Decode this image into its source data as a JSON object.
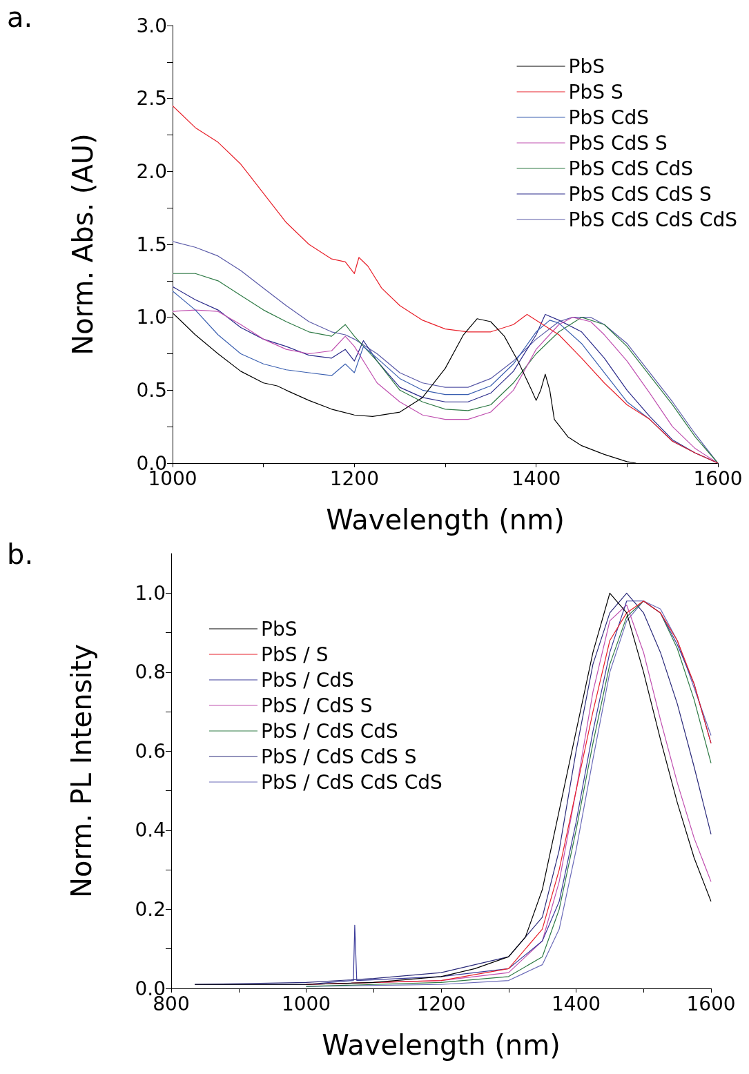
{
  "chart_data": [
    {
      "type": "line",
      "annotations": [
        "a."
      ],
      "xlabel": "Wavelength (nm)",
      "ylabel": "Norm. Abs. (AU)",
      "xlim": [
        1000,
        1600
      ],
      "xticks": [
        1000,
        {
          "value": 1100,
          "label": null
        },
        1200,
        {
          "value": 1300,
          "label": null
        },
        1400,
        {
          "value": 1500,
          "label": null
        },
        1600
      ],
      "ylim": [
        0,
        3
      ],
      "yticks": [
        {
          "value": 0,
          "label": "0.0"
        },
        {
          "value": 0.25,
          "label": null
        },
        {
          "value": 0.5,
          "label": "0.5"
        },
        {
          "value": 0.75,
          "label": null
        },
        {
          "value": 1,
          "label": "1.0"
        },
        {
          "value": 1.25,
          "label": null
        },
        {
          "value": 1.5,
          "label": "1.5"
        },
        {
          "value": 1.75,
          "label": null
        },
        {
          "value": 2,
          "label": "2.0"
        },
        {
          "value": 2.25,
          "label": null
        },
        {
          "value": 2.5,
          "label": "2.5"
        },
        {
          "value": 2.75,
          "label": null
        },
        {
          "value": 3,
          "label": "3.0"
        }
      ],
      "grid": false,
      "legend": "top right",
      "marker": "none",
      "line_style": "solid",
      "series": [
        {
          "name": "PbS",
          "color": "#000000",
          "x": [
            1000,
            1025,
            1050,
            1075,
            1100,
            1115,
            1125,
            1150,
            1175,
            1200,
            1220,
            1250,
            1275,
            1300,
            1320,
            1335,
            1350,
            1365,
            1380,
            1395,
            1400,
            1405,
            1410,
            1415,
            1420,
            1435,
            1450,
            1475,
            1500,
            1510
          ],
          "values": [
            1.03,
            0.88,
            0.75,
            0.63,
            0.55,
            0.53,
            0.5,
            0.43,
            0.37,
            0.33,
            0.32,
            0.35,
            0.45,
            0.65,
            0.88,
            0.99,
            0.97,
            0.87,
            0.7,
            0.5,
            0.43,
            0.5,
            0.61,
            0.5,
            0.3,
            0.18,
            0.12,
            0.06,
            0.01,
            0.0
          ]
        },
        {
          "name": "PbS S",
          "color": "#e8202a",
          "x": [
            1000,
            1025,
            1050,
            1075,
            1100,
            1125,
            1150,
            1175,
            1190,
            1200,
            1205,
            1215,
            1230,
            1250,
            1275,
            1300,
            1325,
            1350,
            1375,
            1390,
            1400,
            1425,
            1450,
            1475,
            1500,
            1525,
            1550,
            1575,
            1600
          ],
          "values": [
            2.45,
            2.3,
            2.2,
            2.05,
            1.85,
            1.65,
            1.5,
            1.4,
            1.38,
            1.3,
            1.41,
            1.35,
            1.2,
            1.08,
            0.98,
            0.92,
            0.9,
            0.9,
            0.95,
            1.02,
            0.98,
            0.88,
            0.72,
            0.55,
            0.4,
            0.3,
            0.15,
            0.07,
            0.0
          ]
        },
        {
          "name": "PbS CdS",
          "color": "#3a5fb0",
          "x": [
            1000,
            1025,
            1050,
            1075,
            1100,
            1125,
            1150,
            1175,
            1190,
            1200,
            1210,
            1225,
            1250,
            1275,
            1300,
            1325,
            1350,
            1375,
            1400,
            1415,
            1425,
            1450,
            1475,
            1500,
            1525,
            1550,
            1575,
            1600
          ],
          "values": [
            1.18,
            1.05,
            0.88,
            0.75,
            0.68,
            0.64,
            0.62,
            0.6,
            0.68,
            0.62,
            0.8,
            0.72,
            0.58,
            0.5,
            0.47,
            0.47,
            0.53,
            0.68,
            0.9,
            0.98,
            0.96,
            0.82,
            0.62,
            0.42,
            0.3,
            0.15,
            0.07,
            0.0
          ]
        },
        {
          "name": "PbS CdS S",
          "color": "#c050b0",
          "x": [
            1000,
            1025,
            1050,
            1075,
            1100,
            1125,
            1150,
            1175,
            1190,
            1200,
            1225,
            1250,
            1275,
            1300,
            1325,
            1350,
            1375,
            1400,
            1425,
            1440,
            1460,
            1475,
            1500,
            1525,
            1550,
            1575,
            1600
          ],
          "values": [
            1.04,
            1.05,
            1.04,
            0.95,
            0.85,
            0.78,
            0.75,
            0.77,
            0.87,
            0.8,
            0.55,
            0.42,
            0.33,
            0.3,
            0.3,
            0.35,
            0.5,
            0.78,
            0.95,
            1.0,
            0.97,
            0.88,
            0.7,
            0.48,
            0.25,
            0.1,
            0.0
          ]
        },
        {
          "name": "PbS CdS CdS",
          "color": "#2e7a45",
          "x": [
            1000,
            1025,
            1050,
            1075,
            1100,
            1125,
            1150,
            1175,
            1190,
            1200,
            1225,
            1250,
            1275,
            1300,
            1325,
            1350,
            1375,
            1400,
            1425,
            1450,
            1475,
            1500,
            1525,
            1550,
            1575,
            1600
          ],
          "values": [
            1.3,
            1.3,
            1.25,
            1.15,
            1.05,
            0.97,
            0.9,
            0.87,
            0.95,
            0.87,
            0.7,
            0.5,
            0.42,
            0.37,
            0.36,
            0.4,
            0.55,
            0.75,
            0.9,
            1.0,
            0.95,
            0.8,
            0.6,
            0.4,
            0.18,
            0.0
          ]
        },
        {
          "name": "PbS CdS CdS S",
          "color": "#2a2a8a",
          "x": [
            1000,
            1025,
            1050,
            1075,
            1100,
            1125,
            1150,
            1175,
            1190,
            1200,
            1210,
            1225,
            1250,
            1275,
            1300,
            1325,
            1350,
            1375,
            1400,
            1410,
            1425,
            1450,
            1475,
            1500,
            1525,
            1550,
            1575,
            1600
          ],
          "values": [
            1.21,
            1.12,
            1.05,
            0.93,
            0.85,
            0.8,
            0.74,
            0.72,
            0.78,
            0.7,
            0.84,
            0.7,
            0.52,
            0.45,
            0.42,
            0.42,
            0.48,
            0.63,
            0.88,
            1.02,
            0.98,
            0.9,
            0.72,
            0.5,
            0.32,
            0.16,
            0.07,
            0.0
          ]
        },
        {
          "name": "PbS CdS CdS CdS",
          "color": "#5a5aa8",
          "x": [
            1000,
            1025,
            1050,
            1075,
            1100,
            1125,
            1150,
            1175,
            1190,
            1200,
            1225,
            1250,
            1275,
            1300,
            1325,
            1350,
            1375,
            1400,
            1425,
            1440,
            1460,
            1475,
            1500,
            1525,
            1550,
            1575,
            1600
          ],
          "values": [
            1.52,
            1.48,
            1.42,
            1.32,
            1.2,
            1.08,
            0.97,
            0.9,
            0.88,
            0.85,
            0.75,
            0.62,
            0.55,
            0.52,
            0.52,
            0.58,
            0.7,
            0.85,
            0.97,
            1.0,
            1.0,
            0.95,
            0.82,
            0.62,
            0.42,
            0.2,
            0.0
          ]
        }
      ]
    },
    {
      "type": "line",
      "annotations": [
        "b."
      ],
      "xlabel": "Wavelength (nm)",
      "ylabel": "Norm. PL Intensity",
      "xlim": [
        800,
        1600
      ],
      "xticks": [
        800,
        {
          "value": 900,
          "label": null
        },
        1000,
        {
          "value": 1100,
          "label": null
        },
        1200,
        {
          "value": 1300,
          "label": null
        },
        1400,
        {
          "value": 1500,
          "label": null
        },
        1600
      ],
      "ylim": [
        0,
        1.1
      ],
      "yticks": [
        {
          "value": 0,
          "label": "0.0"
        },
        {
          "value": 0.1,
          "label": null
        },
        {
          "value": 0.2,
          "label": "0.2"
        },
        {
          "value": 0.3,
          "label": null
        },
        {
          "value": 0.4,
          "label": "0.4"
        },
        {
          "value": 0.5,
          "label": null
        },
        {
          "value": 0.6,
          "label": "0.6"
        },
        {
          "value": 0.7,
          "label": null
        },
        {
          "value": 0.8,
          "label": "0.8"
        },
        {
          "value": 0.9,
          "label": null
        },
        {
          "value": 1,
          "label": "1.0"
        }
      ],
      "grid": false,
      "legend": "top left",
      "marker": "none",
      "line_style": "solid",
      "series": [
        {
          "name": "PbS",
          "color": "#000000",
          "x": [
            835,
            900,
            1000,
            1100,
            1200,
            1250,
            1300,
            1325,
            1350,
            1375,
            1400,
            1425,
            1450,
            1475,
            1500,
            1525,
            1550,
            1575,
            1600
          ],
          "values": [
            0.01,
            0.01,
            0.01,
            0.015,
            0.03,
            0.05,
            0.08,
            0.13,
            0.25,
            0.45,
            0.65,
            0.85,
            1.0,
            0.95,
            0.8,
            0.63,
            0.47,
            0.33,
            0.22
          ]
        },
        {
          "name": "PbS / S",
          "color": "#e8202a",
          "x": [
            1000,
            1200,
            1300,
            1350,
            1375,
            1400,
            1425,
            1450,
            1475,
            1500,
            1525,
            1550,
            1575,
            1600
          ],
          "values": [
            0.01,
            0.02,
            0.05,
            0.15,
            0.3,
            0.5,
            0.7,
            0.88,
            0.95,
            0.98,
            0.95,
            0.88,
            0.77,
            0.62
          ]
        },
        {
          "name": "PbS / CdS",
          "color": "#3a3a9a",
          "x": [
            835,
            1000,
            1070,
            1072,
            1075,
            1200,
            1300,
            1350,
            1375,
            1400,
            1425,
            1450,
            1475,
            1500,
            1525,
            1550,
            1575,
            1600
          ],
          "values": [
            0.01,
            0.01,
            0.02,
            0.16,
            0.02,
            0.03,
            0.05,
            0.12,
            0.22,
            0.42,
            0.65,
            0.85,
            0.98,
            0.98,
            0.95,
            0.87,
            0.77,
            0.62
          ]
        },
        {
          "name": "PbS / CdS S",
          "color": "#c050b0",
          "x": [
            1000,
            1200,
            1300,
            1350,
            1375,
            1400,
            1425,
            1450,
            1475,
            1500,
            1525,
            1550,
            1575,
            1600
          ],
          "values": [
            0.01,
            0.02,
            0.04,
            0.12,
            0.27,
            0.5,
            0.75,
            0.93,
            0.97,
            0.85,
            0.68,
            0.52,
            0.38,
            0.27
          ]
        },
        {
          "name": "PbS / CdS CdS",
          "color": "#2e7a45",
          "x": [
            1000,
            1200,
            1300,
            1350,
            1375,
            1400,
            1425,
            1450,
            1475,
            1500,
            1525,
            1550,
            1575,
            1600
          ],
          "values": [
            0.005,
            0.015,
            0.03,
            0.08,
            0.2,
            0.4,
            0.62,
            0.82,
            0.94,
            0.98,
            0.95,
            0.86,
            0.73,
            0.57
          ]
        },
        {
          "name": "PbS / CdS CdS S",
          "color": "#2a2a7a",
          "x": [
            835,
            1000,
            1100,
            1200,
            1300,
            1350,
            1375,
            1400,
            1425,
            1450,
            1475,
            1500,
            1525,
            1550,
            1575,
            1600
          ],
          "values": [
            0.01,
            0.015,
            0.025,
            0.04,
            0.08,
            0.18,
            0.35,
            0.6,
            0.82,
            0.95,
            1.0,
            0.95,
            0.85,
            0.72,
            0.56,
            0.39
          ]
        },
        {
          "name": "PbS / CdS CdS CdS",
          "color": "#6a6ab8",
          "x": [
            1000,
            1200,
            1300,
            1350,
            1375,
            1400,
            1425,
            1450,
            1475,
            1500,
            1525,
            1550,
            1575,
            1600
          ],
          "values": [
            0.005,
            0.01,
            0.02,
            0.06,
            0.15,
            0.35,
            0.58,
            0.8,
            0.93,
            0.98,
            0.96,
            0.88,
            0.76,
            0.64
          ]
        }
      ]
    }
  ]
}
